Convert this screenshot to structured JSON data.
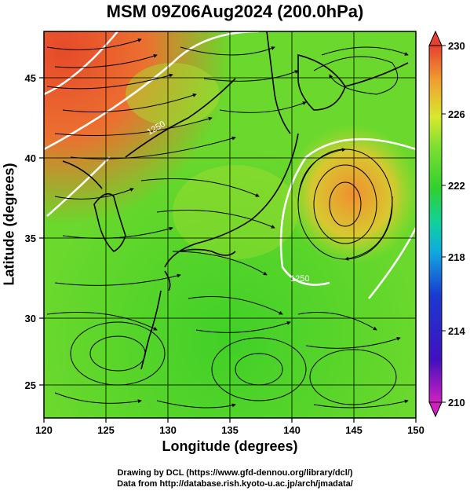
{
  "title": "MSM 09Z06Aug2024 (200.0hPa)",
  "xlabel": "Longitude (degrees)",
  "ylabel": "Latitude  (degrees)",
  "x_ticks": [
    "120",
    "125",
    "130",
    "135",
    "140",
    "145",
    "150"
  ],
  "y_ticks": [
    "45",
    "40",
    "35",
    "30",
    "25"
  ],
  "colorbar_ticks": [
    "230",
    "226",
    "222",
    "218",
    "214",
    "210"
  ],
  "contour_labels": [
    "1250",
    "1250"
  ],
  "credit_line1": "Drawing by DCL (https://www.gfd-dennou.org/library/dcl/)",
  "credit_line2": "Data from http://database.rish.kyoto-u.ac.jp/arch/jmadata/",
  "map": {
    "region": {
      "lon_min": 120,
      "lon_max": 150,
      "lat_min": 22.4,
      "lat_max": 47.6
    },
    "field": "temperature (K) with streamlines",
    "colorbar": {
      "min": 210,
      "max": 230
    },
    "colors": {
      "hot": "#e8402a",
      "warm": "#f08a30",
      "yellowgreen": "#b8e030",
      "green": "#50d828",
      "blue": "#1a3ad0",
      "magenta": "#d020c0"
    }
  }
}
